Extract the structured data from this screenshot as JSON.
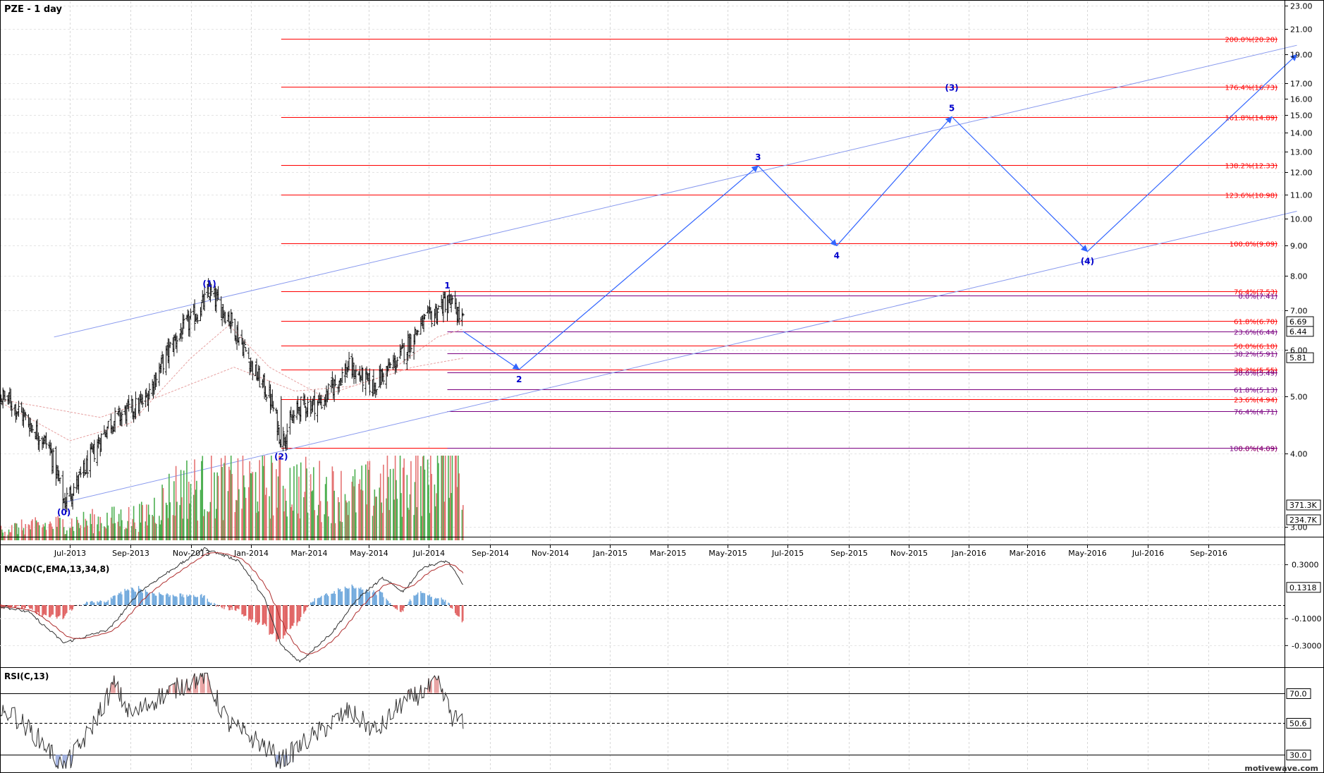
{
  "chart_data": [
    {
      "type": "line",
      "panel": "price",
      "title": "PZE - 1 day",
      "scale": "log",
      "ylim": [
        2.7,
        23.0
      ],
      "y_ticks": [
        "23.00",
        "21.00",
        "19.00",
        "17.00",
        "16.00",
        "15.00",
        "14.00",
        "13.00",
        "12.00",
        "11.00",
        "10.00",
        "9.00",
        "8.00",
        "7.00",
        "6.00",
        "5.00",
        "4.00",
        "3.00"
      ],
      "x_ticks": [
        "Jul-2013",
        "Sep-2013",
        "Nov-2013",
        "Jan-2014",
        "Mar-2014",
        "May-2014",
        "Jul-2014",
        "Sep-2014",
        "Nov-2014",
        "Jan-2015",
        "Mar-2015",
        "May-2015",
        "Jul-2015",
        "Sep-2015",
        "Nov-2015",
        "Jan-2016",
        "Mar-2016",
        "May-2016",
        "Jul-2016",
        "Sep-2016"
      ],
      "price_anchors": [
        {
          "x": "2013-04-01",
          "y": 5.2
        },
        {
          "x": "2013-05-01",
          "y": 4.9
        },
        {
          "x": "2013-06-10",
          "y": 4.1
        },
        {
          "x": "2013-06-25",
          "y": 3.3
        },
        {
          "x": "2013-07-15",
          "y": 3.7
        },
        {
          "x": "2013-08-10",
          "y": 4.5
        },
        {
          "x": "2013-09-15",
          "y": 4.9
        },
        {
          "x": "2013-10-15",
          "y": 6.2
        },
        {
          "x": "2013-11-10",
          "y": 7.0
        },
        {
          "x": "2013-11-20",
          "y": 7.5
        },
        {
          "x": "2013-12-10",
          "y": 6.8
        },
        {
          "x": "2014-01-05",
          "y": 5.5
        },
        {
          "x": "2014-01-20",
          "y": 5.0
        },
        {
          "x": "2014-02-01",
          "y": 4.2
        },
        {
          "x": "2014-02-20",
          "y": 4.8
        },
        {
          "x": "2014-03-15",
          "y": 4.9
        },
        {
          "x": "2014-04-10",
          "y": 5.6
        },
        {
          "x": "2014-05-05",
          "y": 5.2
        },
        {
          "x": "2014-06-01",
          "y": 5.8
        },
        {
          "x": "2014-06-20",
          "y": 6.5
        },
        {
          "x": "2014-07-10",
          "y": 7.0
        },
        {
          "x": "2014-07-20",
          "y": 7.3
        },
        {
          "x": "2014-08-05",
          "y": 6.7
        }
      ],
      "moving_averages": [
        {
          "name": "MA-fast",
          "points": [
            {
              "x": "2013-04-01",
              "y": 5.1
            },
            {
              "x": "2013-07-01",
              "y": 4.2
            },
            {
              "x": "2013-09-01",
              "y": 4.5
            },
            {
              "x": "2013-11-01",
              "y": 5.8
            },
            {
              "x": "2013-12-10",
              "y": 6.6
            },
            {
              "x": "2014-01-20",
              "y": 5.6
            },
            {
              "x": "2014-03-15",
              "y": 5.0
            },
            {
              "x": "2014-05-15",
              "y": 5.4
            },
            {
              "x": "2014-07-10",
              "y": 6.3
            },
            {
              "x": "2014-08-05",
              "y": 6.5
            }
          ]
        },
        {
          "name": "MA-slow",
          "points": [
            {
              "x": "2013-04-01",
              "y": 5.0
            },
            {
              "x": "2013-06-01",
              "y": 4.8
            },
            {
              "x": "2013-08-01",
              "y": 4.6
            },
            {
              "x": "2013-10-01",
              "y": 5.0
            },
            {
              "x": "2013-12-15",
              "y": 5.6
            },
            {
              "x": "2014-02-15",
              "y": 5.1
            },
            {
              "x": "2014-04-15",
              "y": 5.2
            },
            {
              "x": "2014-06-15",
              "y": 5.6
            },
            {
              "x": "2014-08-05",
              "y": 5.8
            }
          ]
        }
      ],
      "channel_lines": [
        {
          "from": {
            "x": "2013-06-15",
            "y": 6.3
          },
          "to": {
            "x": "2016-11-30",
            "y": 19.7
          }
        },
        {
          "from": {
            "x": "2013-06-25",
            "y": 3.3
          },
          "to": {
            "x": "2016-11-30",
            "y": 10.3
          }
        }
      ],
      "wave_labels": [
        {
          "text": "(0)",
          "x": "2013-06-25",
          "y": 3.3,
          "pos": "below"
        },
        {
          "text": "(1)",
          "x": "2013-11-20",
          "y": 7.5,
          "pos": "above"
        },
        {
          "text": "(2)",
          "x": "2014-02-01",
          "y": 4.1,
          "pos": "below"
        },
        {
          "text": "1",
          "x": "2014-07-20",
          "y": 7.45,
          "pos": "above"
        },
        {
          "text": "2",
          "x": "2014-10-01",
          "y": 5.55,
          "pos": "below"
        },
        {
          "text": "3",
          "x": "2015-06-01",
          "y": 12.3,
          "pos": "above"
        },
        {
          "text": "4",
          "x": "2015-08-20",
          "y": 9.0,
          "pos": "below"
        },
        {
          "text": "(3)",
          "x": "2015-12-15",
          "y": 16.5,
          "pos": "none"
        },
        {
          "text": "5",
          "x": "2015-12-15",
          "y": 14.9,
          "pos": "above"
        },
        {
          "text": "(4)",
          "x": "2016-05-01",
          "y": 8.8,
          "pos": "below"
        }
      ],
      "projection": [
        {
          "x": "2014-08-05",
          "y": 6.44
        },
        {
          "x": "2014-10-01",
          "y": 5.55
        },
        {
          "x": "2015-06-01",
          "y": 12.3
        },
        {
          "x": "2015-08-20",
          "y": 9.0
        },
        {
          "x": "2015-12-15",
          "y": 14.9
        },
        {
          "x": "2016-05-01",
          "y": 8.8
        },
        {
          "x": "2016-11-30",
          "y": 19.0
        }
      ],
      "fib_red": [
        {
          "label": "200.0%(20.20)",
          "value": 20.2
        },
        {
          "label": "176.4%(16.73)",
          "value": 16.73
        },
        {
          "label": "161.8%(14.89)",
          "value": 14.89
        },
        {
          "label": "138.2%(12.33)",
          "value": 12.33
        },
        {
          "label": "123.6%(10.98)",
          "value": 10.98
        },
        {
          "label": "100.0%(9.09)",
          "value": 9.09
        },
        {
          "label": "76.4%(7.53)",
          "value": 7.53
        },
        {
          "label": "61.8%(6.70)",
          "value": 6.7
        },
        {
          "label": "50.0%(6.10)",
          "value": 6.1
        },
        {
          "label": "38.2%(5.55)",
          "value": 5.55
        },
        {
          "label": "23.6%(4.94)",
          "value": 4.94
        },
        {
          "label": "0.0%(4.09)",
          "value": 4.09
        }
      ],
      "fib_purple": [
        {
          "label": "0.0%(7.41)",
          "value": 7.41
        },
        {
          "label": "23.6%(6.44)",
          "value": 6.44
        },
        {
          "label": "38.2%(5.91)",
          "value": 5.91
        },
        {
          "label": "50.0%(5.49)",
          "value": 5.49
        },
        {
          "label": "61.8%(5.13)",
          "value": 5.13
        },
        {
          "label": "76.4%(4.71)",
          "value": 4.71
        },
        {
          "label": "100.0%(4.09)",
          "value": 4.09
        }
      ],
      "price_badges": [
        {
          "text": "6.69",
          "value": 6.69
        },
        {
          "text": "6.44",
          "value": 6.44
        },
        {
          "text": "5.81",
          "value": 5.81
        }
      ],
      "volume": {
        "badges": [
          "371.3K",
          "234.7K"
        ],
        "anchors": [
          {
            "x": "2013-04-01",
            "v": 60
          },
          {
            "x": "2013-09-15",
            "v": 160
          },
          {
            "x": "2013-10-20",
            "v": 350
          },
          {
            "x": "2014-01-25",
            "v": 380
          },
          {
            "x": "2014-04-15",
            "v": 300
          },
          {
            "x": "2014-07-10",
            "v": 460
          },
          {
            "x": "2014-07-25",
            "v": 800
          },
          {
            "x": "2014-08-05",
            "v": 420
          }
        ]
      },
      "colors": {
        "fib_red": "#ff0000",
        "fib_purple": "#7a0080",
        "projection": "#3366ff",
        "channel": "#8899ee",
        "wave_label": "#0000cc",
        "bars": "#111111",
        "vol_up": "#4caf50",
        "vol_down": "#e57373"
      }
    },
    {
      "type": "line",
      "panel": "macd",
      "title": "MACD(C,EMA,13,34,8)",
      "ylim": [
        -0.45,
        0.45
      ],
      "y_ticks": [
        "0.3000",
        "-0.1000",
        "-0.3000"
      ],
      "zero_line": 0,
      "badge": "0.1318",
      "anchors": [
        {
          "x": "2013-04-01",
          "y": 0.02
        },
        {
          "x": "2013-05-20",
          "y": -0.05
        },
        {
          "x": "2013-06-25",
          "y": -0.28
        },
        {
          "x": "2013-08-10",
          "y": -0.18
        },
        {
          "x": "2013-09-10",
          "y": 0.1
        },
        {
          "x": "2013-10-10",
          "y": 0.25
        },
        {
          "x": "2013-11-15",
          "y": 0.42
        },
        {
          "x": "2013-12-20",
          "y": 0.33
        },
        {
          "x": "2014-01-15",
          "y": 0.05
        },
        {
          "x": "2014-02-01",
          "y": -0.3
        },
        {
          "x": "2014-02-20",
          "y": -0.42
        },
        {
          "x": "2014-03-25",
          "y": -0.2
        },
        {
          "x": "2014-04-20",
          "y": 0.05
        },
        {
          "x": "2014-05-15",
          "y": 0.2
        },
        {
          "x": "2014-06-05",
          "y": 0.1
        },
        {
          "x": "2014-06-25",
          "y": 0.28
        },
        {
          "x": "2014-07-20",
          "y": 0.33
        },
        {
          "x": "2014-08-05",
          "y": 0.15
        }
      ],
      "colors": {
        "macd": "#333333",
        "signal": "#b03030",
        "hist_pos": "#6fa8dc",
        "hist_neg": "#e06060"
      }
    },
    {
      "type": "line",
      "panel": "rsi",
      "title": "RSI(C,13)",
      "ylim": [
        20,
        85
      ],
      "levels": [
        {
          "label": "70.0",
          "value": 70
        },
        {
          "label": "50.6",
          "value": 50.6
        },
        {
          "label": "30.0",
          "value": 30
        }
      ],
      "anchors": [
        {
          "x": "2013-04-01",
          "y": 48
        },
        {
          "x": "2013-05-01",
          "y": 58
        },
        {
          "x": "2013-06-05",
          "y": 37
        },
        {
          "x": "2013-06-25",
          "y": 21
        },
        {
          "x": "2013-07-20",
          "y": 44
        },
        {
          "x": "2013-08-15",
          "y": 76
        },
        {
          "x": "2013-09-01",
          "y": 55
        },
        {
          "x": "2013-10-01",
          "y": 68
        },
        {
          "x": "2013-11-15",
          "y": 82
        },
        {
          "x": "2013-12-10",
          "y": 50
        },
        {
          "x": "2014-01-10",
          "y": 38
        },
        {
          "x": "2014-02-01",
          "y": 26
        },
        {
          "x": "2014-03-01",
          "y": 40
        },
        {
          "x": "2014-04-10",
          "y": 58
        },
        {
          "x": "2014-05-10",
          "y": 45
        },
        {
          "x": "2014-06-01",
          "y": 62
        },
        {
          "x": "2014-07-10",
          "y": 76
        },
        {
          "x": "2014-07-25",
          "y": 55
        },
        {
          "x": "2014-08-05",
          "y": 50
        }
      ],
      "colors": {
        "line": "#333333",
        "ob_fill": "#e8a0a0",
        "os_fill": "#a0b0e0"
      }
    }
  ],
  "footer": {
    "brand": "motivewave.com"
  }
}
